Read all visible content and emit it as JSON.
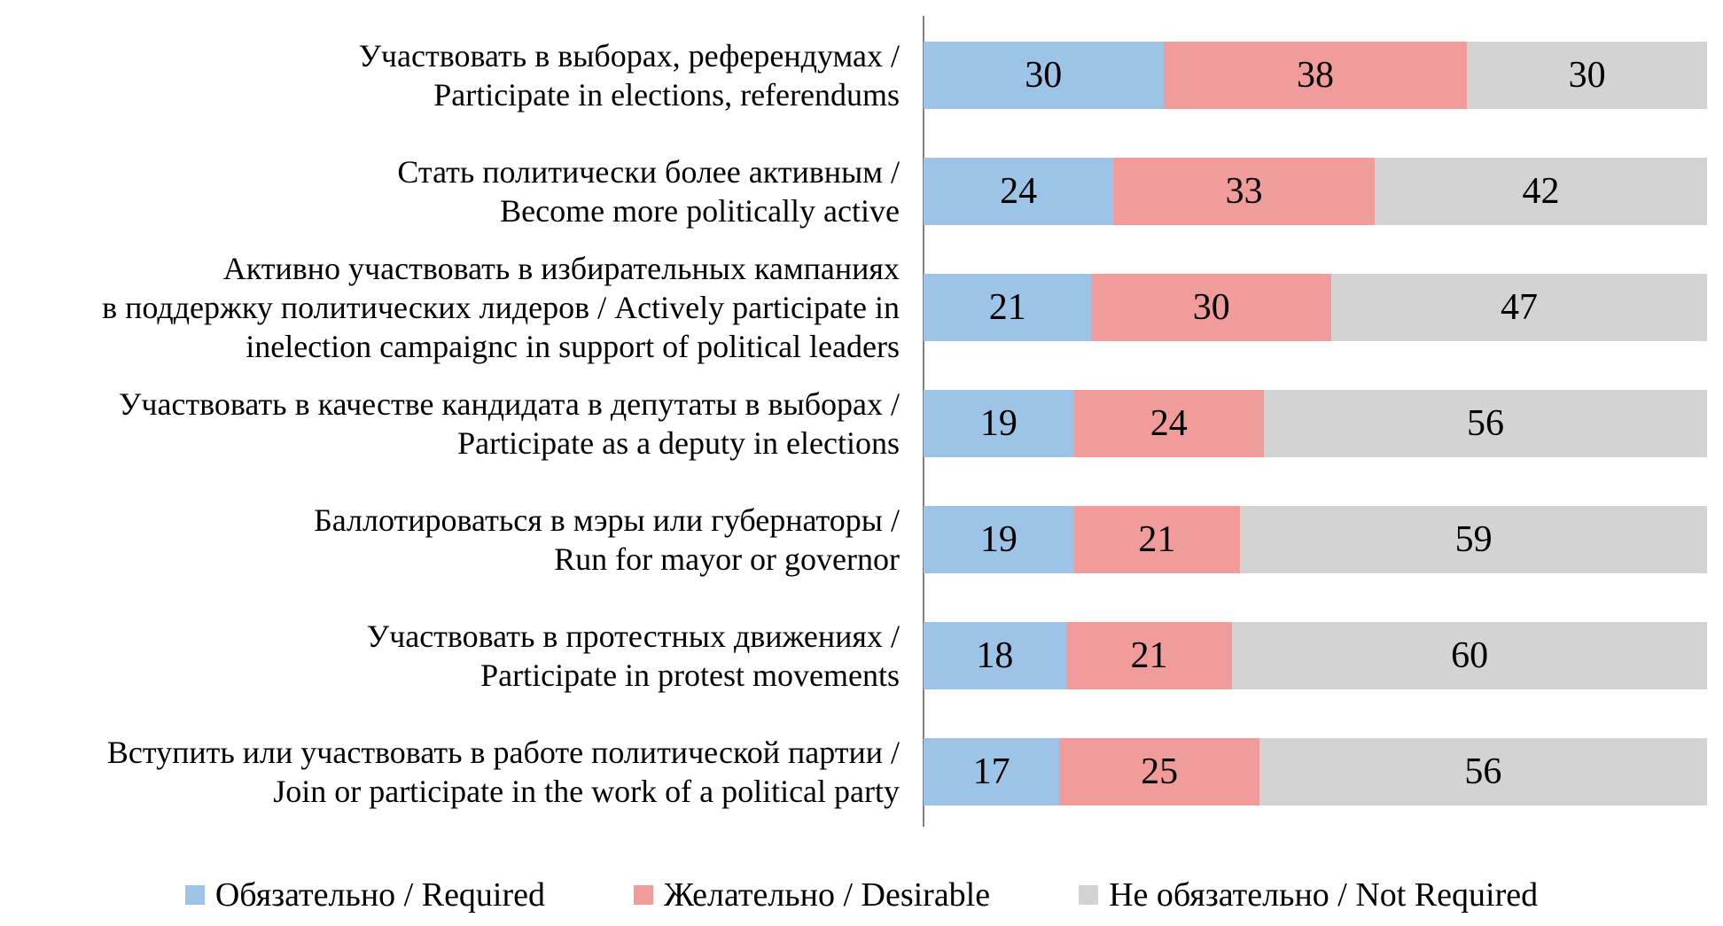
{
  "chart_data": {
    "type": "bar",
    "orientation": "horizontal",
    "stacked": true,
    "grid": false,
    "legend_position": "bottom",
    "axis_color": "#808080",
    "categories": [
      "Участвовать в выборах, референдумах / Participate in elections, referendums",
      "Стать политически более активным / Become more politically active",
      "Активно участвовать в избирательных кампаниях в поддержку политических лидеров / Actively participate in inelection campaignc in support of political leaders",
      "Участвовать в качестве кандидата в депутаты в выборах / Participate as a deputy in elections",
      "Баллотироваться в мэры или губернаторы / Run for mayor or governor",
      "Участвовать в протестных движениях / Participate in protest movements",
      "Вступить или участвовать в работе политической партии / Join or participate in the work of a political party"
    ],
    "category_label_lines": [
      [
        "Участвовать в выборах, референдумах /",
        "Participate in elections, referendums"
      ],
      [
        "Стать политически более активным /",
        "Become more politically active"
      ],
      [
        "Активно участвовать в избирательных кампаниях",
        "в поддержку политических лидеров / Actively participate in",
        "inelection campaignc in support of political leaders"
      ],
      [
        "Участвовать в качестве кандидата в депутаты в выборах /",
        "Participate as a deputy in elections"
      ],
      [
        "Баллотироваться в мэры или губернаторы /",
        "Run for mayor or governor"
      ],
      [
        "Участвовать в протестных движениях /",
        "Participate in protest movements"
      ],
      [
        "Вступить или участвовать в работе политической партии /",
        "Join or participate in the work of a political party"
      ]
    ],
    "series": [
      {
        "name": "Обязательно / Required",
        "color": "#9DC3E6",
        "values": [
          30,
          24,
          21,
          19,
          19,
          18,
          17
        ]
      },
      {
        "name": "Желательно / Desirable",
        "color": "#F19B9B",
        "values": [
          38,
          33,
          30,
          24,
          21,
          21,
          25
        ]
      },
      {
        "name": "Не обязательно / Not Required",
        "color": "#D3D3D3",
        "values": [
          30,
          42,
          47,
          56,
          59,
          60,
          56
        ]
      }
    ]
  }
}
